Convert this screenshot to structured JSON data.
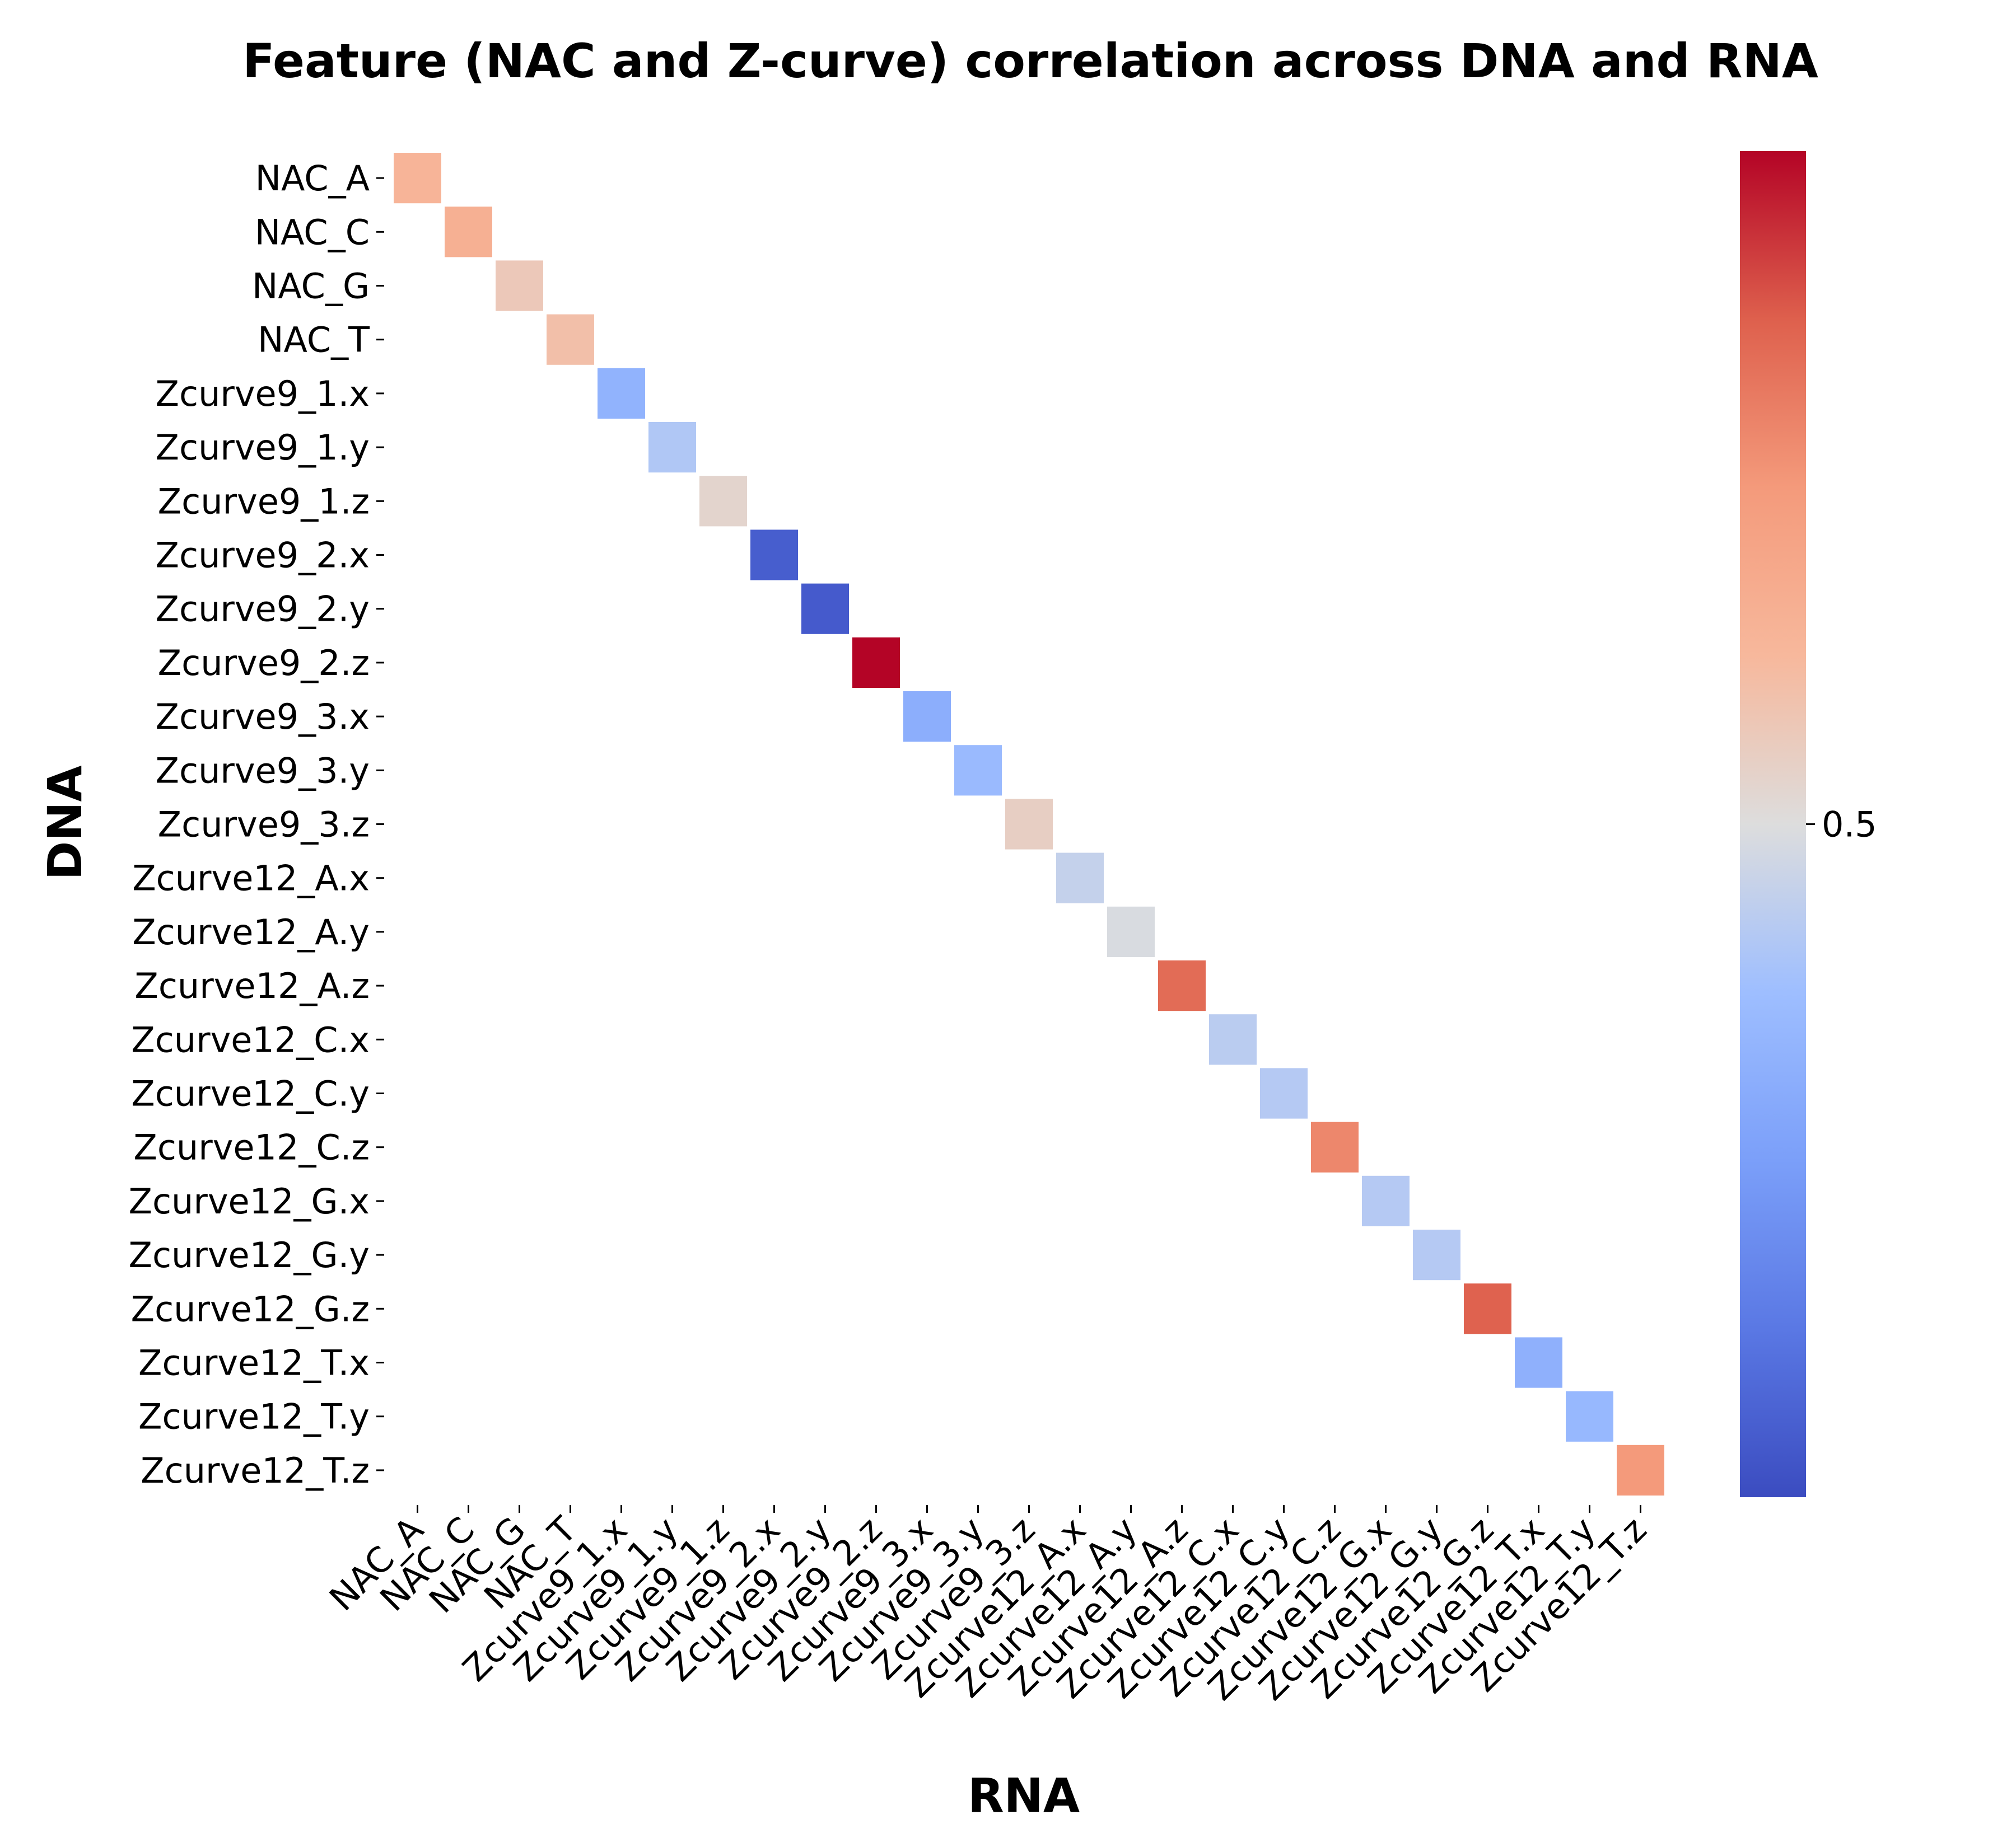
{
  "chart_data": {
    "type": "heatmap",
    "title": "Feature (NAC and Z-curve) correlation across DNA and RNA",
    "xlabel": "RNA",
    "ylabel": "DNA",
    "x_tick_labels": [
      "NAC_A",
      "NAC_C",
      "NAC_G",
      "NAC_T",
      "Zcurve9_1.x",
      "Zcurve9_1.y",
      "Zcurve9_1.z",
      "Zcurve9_2.x",
      "Zcurve9_2.y",
      "Zcurve9_2.z",
      "Zcurve9_3.x",
      "Zcurve9_3.y",
      "Zcurve9_3.z",
      "Zcurve12_A.x",
      "Zcurve12_A.y",
      "Zcurve12_A.z",
      "Zcurve12_C.x",
      "Zcurve12_C.y",
      "Zcurve12_C.z",
      "Zcurve12_G.x",
      "Zcurve12_G.y",
      "Zcurve12_G.z",
      "Zcurve12_T.x",
      "Zcurve12_T.y",
      "Zcurve12_T.z"
    ],
    "y_tick_labels": [
      "NAC_A",
      "NAC_C",
      "NAC_G",
      "NAC_T",
      "Zcurve9_1.x",
      "Zcurve9_1.y",
      "Zcurve9_1.z",
      "Zcurve9_2.x",
      "Zcurve9_2.y",
      "Zcurve9_2.z",
      "Zcurve9_3.x",
      "Zcurve9_3.y",
      "Zcurve9_3.z",
      "Zcurve12_A.x",
      "Zcurve12_A.y",
      "Zcurve12_A.z",
      "Zcurve12_C.x",
      "Zcurve12_C.y",
      "Zcurve12_C.z",
      "Zcurve12_G.x",
      "Zcurve12_G.y",
      "Zcurve12_G.z",
      "Zcurve12_T.x",
      "Zcurve12_T.y",
      "Zcurve12_T.z"
    ],
    "diagonal_values": [
      0.64,
      0.66,
      0.57,
      0.6,
      0.33,
      0.41,
      0.53,
      0.05,
      0.04,
      1.0,
      0.31,
      0.36,
      0.55,
      0.45,
      0.49,
      0.85,
      0.43,
      0.42,
      0.79,
      0.42,
      0.42,
      0.87,
      0.32,
      0.35,
      0.75
    ],
    "off_diagonal": "masked (blank)",
    "colormap": "coolwarm",
    "vmin": 0.0,
    "vmax": 1.0,
    "colorbar_ticks": [
      0.5
    ],
    "colorbar_tick_labels": [
      "0.5"
    ],
    "grid": false
  }
}
